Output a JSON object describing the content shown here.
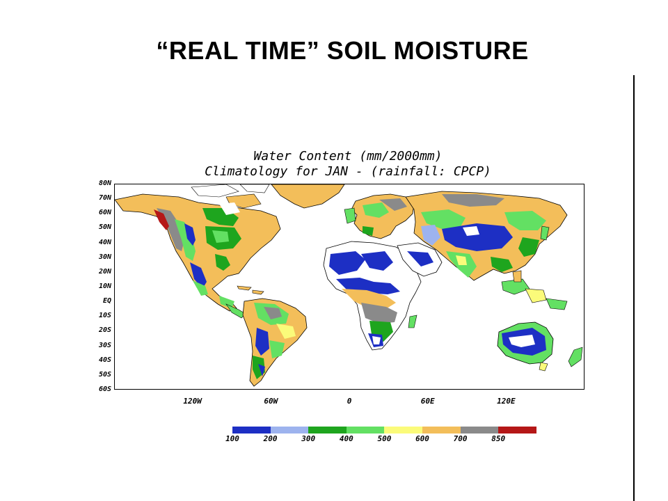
{
  "slide": {
    "title": "“REAL TIME” SOIL MOISTURE"
  },
  "map": {
    "title_line1": "Water Content (mm/2000mm)",
    "title_line2": "Climatology for JAN  - (rainfall: CPCP)",
    "lat_labels": [
      "80N",
      "70N",
      "60N",
      "50N",
      "40N",
      "30N",
      "20N",
      "10N",
      "EQ",
      "10S",
      "20S",
      "30S",
      "40S",
      "50S",
      "60S"
    ],
    "lon_labels": [
      "120W",
      "60W",
      "0",
      "60E",
      "120E"
    ],
    "lon_values": [
      -120,
      -60,
      0,
      60,
      120
    ],
    "lon_range": [
      -180,
      180
    ],
    "lat_range": [
      -60,
      80
    ]
  },
  "legend": {
    "labels": [
      "100",
      "200",
      "300",
      "400",
      "500",
      "600",
      "700",
      "850"
    ],
    "colors": [
      "#1d2fc4",
      "#9db3ee",
      "#1ea51e",
      "#63e063",
      "#fbfb7a",
      "#f3be5a",
      "#8a8a8a",
      "#b51717"
    ]
  },
  "colors": {
    "ocean": "#ffffff",
    "very_dry": "#1d2fc4",
    "dry": "#9db3ee",
    "mid_dry": "#1ea51e",
    "mid": "#63e063",
    "mid_wet": "#fbfb7a",
    "wet": "#f3be5a",
    "very_wet": "#8a8a8a",
    "saturated": "#b51717",
    "ice_white": "#ffffff",
    "coastline": "#000000"
  }
}
